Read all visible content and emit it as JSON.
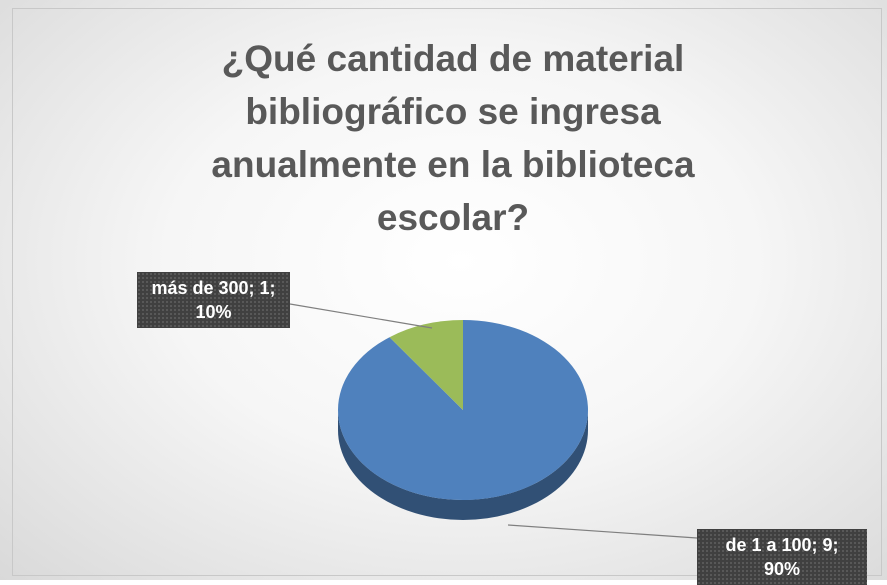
{
  "chart_data": {
    "type": "pie",
    "title": "¿Qué cantidad de material bibliográfico se ingresa anualmente en la biblioteca escolar?",
    "categories": [
      "de 1 a 100",
      "más de 300"
    ],
    "values": [
      9,
      1
    ],
    "value_labels": [
      "de 1 a 100; 9; 90%",
      "más de 300; 1; 10%"
    ],
    "colors": [
      "#4f81bd",
      "#9bbb59"
    ]
  }
}
